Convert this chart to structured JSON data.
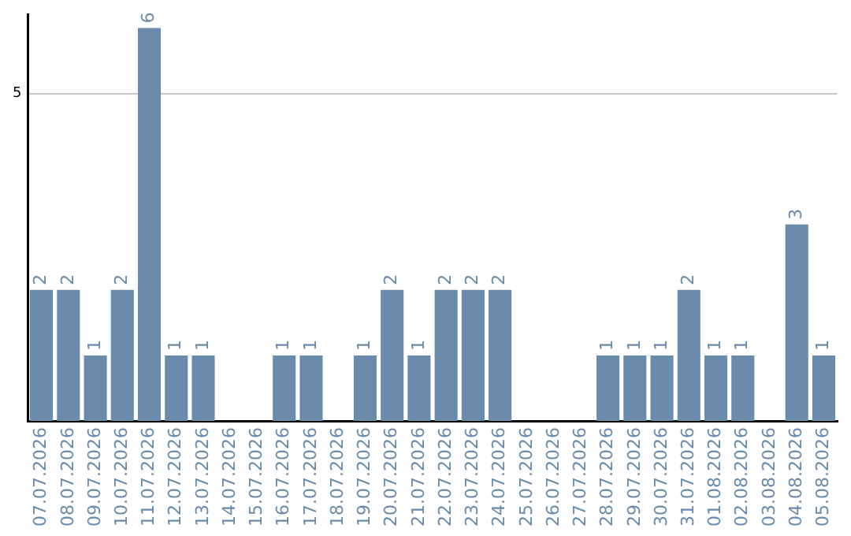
{
  "chart_data": {
    "type": "bar",
    "categories": [
      "07.07.2026",
      "08.07.2026",
      "09.07.2026",
      "10.07.2026",
      "11.07.2026",
      "12.07.2026",
      "13.07.2026",
      "14.07.2026",
      "15.07.2026",
      "16.07.2026",
      "17.07.2026",
      "18.07.2026",
      "19.07.2026",
      "20.07.2026",
      "21.07.2026",
      "22.07.2026",
      "23.07.2026",
      "24.07.2026",
      "25.07.2026",
      "26.07.2026",
      "27.07.2026",
      "28.07.2026",
      "29.07.2026",
      "30.07.2026",
      "31.07.2026",
      "01.08.2026",
      "02.08.2026",
      "03.08.2026",
      "04.08.2026",
      "05.08.2026"
    ],
    "values": [
      2,
      2,
      1,
      2,
      6,
      1,
      1,
      0,
      0,
      1,
      1,
      0,
      1,
      2,
      1,
      2,
      2,
      2,
      0,
      0,
      0,
      1,
      1,
      1,
      2,
      1,
      1,
      0,
      3,
      1
    ],
    "value_labels": [
      "2",
      "2",
      "1",
      "2",
      "6",
      "1",
      "1",
      null,
      null,
      "1",
      "1",
      null,
      "1",
      "2",
      "1",
      "2",
      "2",
      "2",
      null,
      null,
      null,
      "1",
      "1",
      "1",
      "2",
      "1",
      "1",
      null,
      "3",
      "1"
    ],
    "color": "#6a8bab",
    "ylim": [
      0,
      6.2
    ],
    "yticks": [
      5
    ],
    "grid": "y",
    "legend": false
  }
}
